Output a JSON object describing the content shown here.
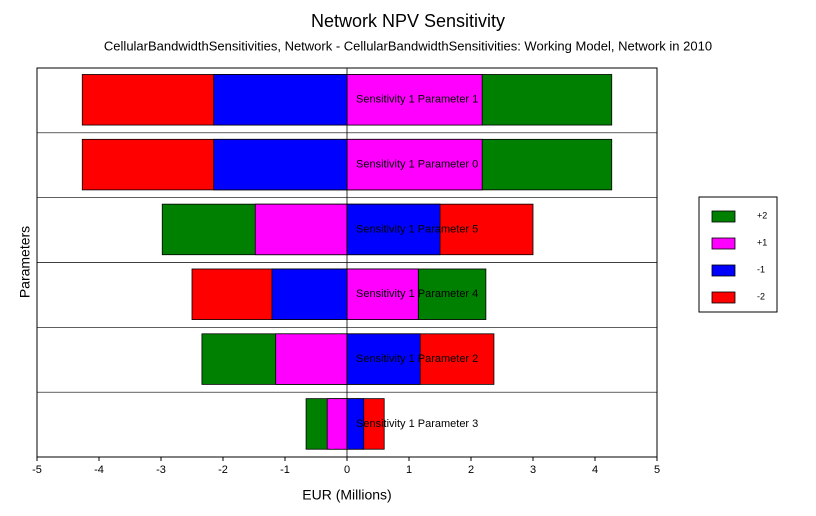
{
  "chart_data": {
    "type": "tornado",
    "title": "Network NPV Sensitivity",
    "subtitle": "CellularBandwidthSensitivities, Network - CellularBandwidthSensitivities: Working Model, Network  in 2010",
    "x_label": "EUR (Millions)",
    "y_label": "Parameters",
    "categories": [
      "Sensitivity 1 Parameter 1",
      "Sensitivity 1 Parameter 0",
      "Sensitivity 1 Parameter 5",
      "Sensitivity 1 Parameter 4",
      "Sensitivity 1 Parameter 2",
      "Sensitivity 1 Parameter 3"
    ],
    "series": [
      {
        "name": "+2",
        "color": "#008000",
        "values": [
          4.27,
          4.27,
          -2.98,
          2.24,
          -2.34,
          -0.66
        ]
      },
      {
        "name": "+1",
        "color": "#ff00ff",
        "values": [
          2.18,
          2.18,
          -1.48,
          1.15,
          -1.15,
          -0.32
        ]
      },
      {
        "name": "-1",
        "color": "#0000ff",
        "values": [
          -2.15,
          -2.15,
          1.5,
          -1.21,
          1.18,
          0.27
        ]
      },
      {
        "name": "-2",
        "color": "#ff0000",
        "values": [
          -4.27,
          -4.27,
          3.0,
          -2.5,
          2.37,
          0.6
        ]
      }
    ],
    "xlim": [
      -5,
      5
    ],
    "xticks": [
      -5,
      -4,
      -3,
      -2,
      -1,
      0,
      1,
      2,
      3,
      4,
      5
    ],
    "legend": "right"
  }
}
